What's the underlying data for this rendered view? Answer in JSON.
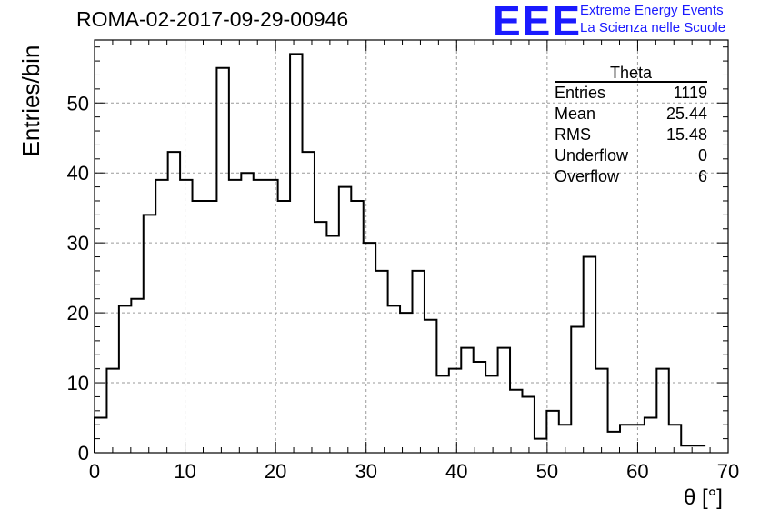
{
  "title": "ROMA-02-2017-09-29-00946",
  "logo": {
    "mark": "EEE",
    "line1": "Extreme Energy Events",
    "line2": "La Scienza nelle Scuole",
    "color": "#1a1aff"
  },
  "stats_box": {
    "title": "Theta",
    "rows": [
      {
        "label": "Entries",
        "value": "1119"
      },
      {
        "label": "Mean",
        "value": "25.44"
      },
      {
        "label": "RMS",
        "value": "15.48"
      },
      {
        "label": "Underflow",
        "value": "0"
      },
      {
        "label": "Overflow",
        "value": "6"
      }
    ]
  },
  "chart_data": {
    "type": "bar",
    "style": "step-histogram",
    "title": "ROMA-02-2017-09-29-00946",
    "xlabel": "θ [°]",
    "ylabel": "Entries/bin",
    "xlim": [
      0,
      70
    ],
    "ylim": [
      0,
      59
    ],
    "bin_width": 1.35,
    "bin_start": 0,
    "x_ticks": [
      0,
      10,
      20,
      30,
      40,
      50,
      60,
      70
    ],
    "y_ticks": [
      0,
      10,
      20,
      30,
      40,
      50
    ],
    "grid": true,
    "line_color": "#000000",
    "values": [
      5,
      12,
      21,
      22,
      34,
      39,
      43,
      39,
      36,
      36,
      55,
      39,
      40,
      39,
      39,
      36,
      57,
      43,
      33,
      31,
      38,
      36,
      30,
      26,
      21,
      20,
      26,
      19,
      11,
      12,
      15,
      13,
      11,
      15,
      9,
      8,
      2,
      6,
      4,
      18,
      28,
      12,
      3,
      4,
      4,
      5,
      12,
      4,
      1,
      1
    ]
  }
}
